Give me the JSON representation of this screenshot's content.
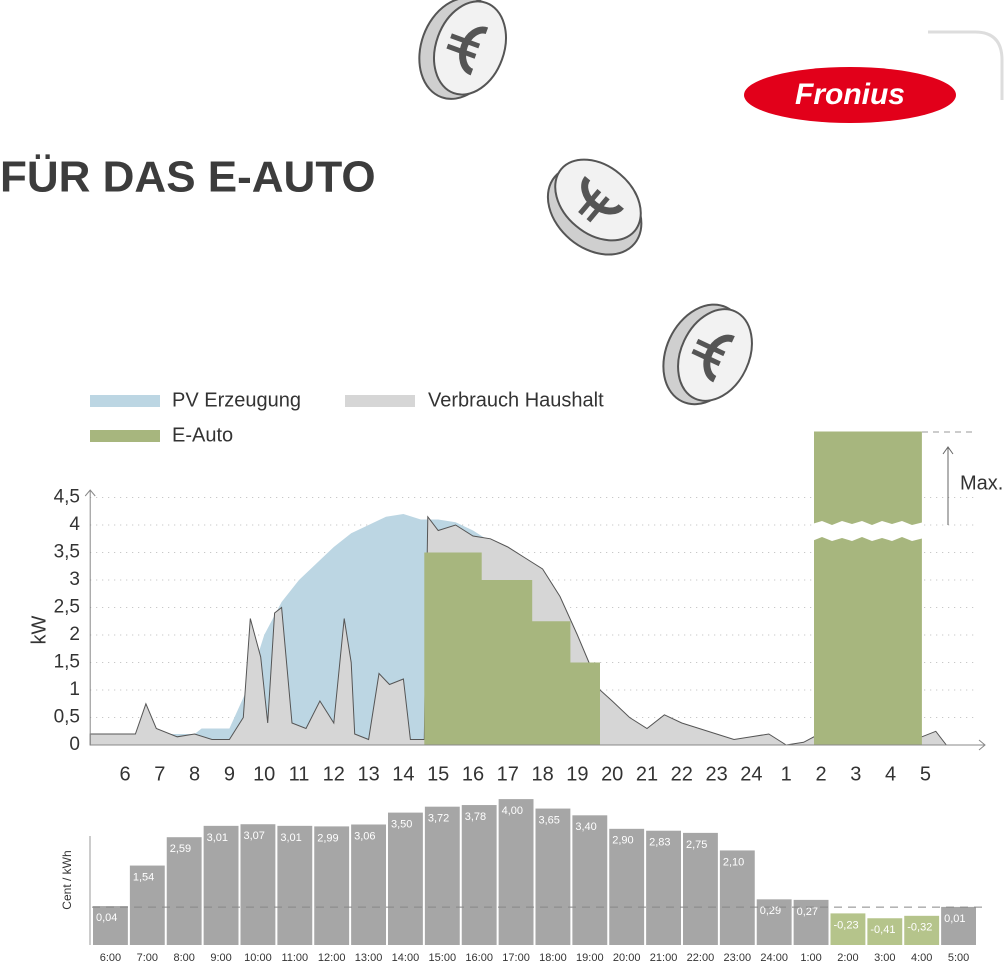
{
  "header": {
    "title": "FÜR DAS E-AUTO",
    "logo": "Fronius"
  },
  "chart_data": [
    {
      "type": "area",
      "ylabel": "kW",
      "annotation": "Max.",
      "xlim": [
        5,
        30.5
      ],
      "ylim": [
        0,
        4.5
      ],
      "xticks": [
        6,
        7,
        8,
        9,
        10,
        11,
        12,
        13,
        14,
        15,
        16,
        17,
        18,
        19,
        20,
        21,
        22,
        23,
        24,
        {
          "value": 25,
          "label": "1"
        },
        {
          "value": 26,
          "label": "2"
        },
        {
          "value": 27,
          "label": "3"
        },
        {
          "value": 28,
          "label": "4"
        },
        {
          "value": 29,
          "label": "5"
        }
      ],
      "yticks": [
        0,
        {
          "value": 0.5,
          "label": "0,5"
        },
        1,
        {
          "value": 1.5,
          "label": "1,5"
        },
        2,
        {
          "value": 2.5,
          "label": "2,5"
        },
        3,
        {
          "value": 3.5,
          "label": "3,5"
        },
        4,
        {
          "value": 4.5,
          "label": "4,5"
        }
      ],
      "grid": true,
      "series": [
        {
          "name": "PV Erzeugung",
          "color": "#bcd6e3",
          "x": [
            5,
            8,
            8.2,
            9,
            9.5,
            10,
            10.5,
            11,
            11.5,
            12,
            12.5,
            13,
            13.5,
            14,
            14.5,
            15,
            15.5,
            16,
            16.5,
            17,
            17.5,
            18,
            18.5,
            19,
            19.3,
            19.6,
            19.8,
            20
          ],
          "values": [
            0.2,
            0.2,
            0.3,
            0.3,
            1.0,
            2.0,
            2.6,
            3.0,
            3.3,
            3.6,
            3.85,
            4.0,
            4.15,
            4.2,
            4.1,
            4.1,
            4.05,
            3.9,
            3.7,
            3.5,
            3.2,
            2.8,
            2.3,
            1.7,
            1.2,
            0.6,
            0.2,
            0
          ]
        },
        {
          "name": "Verbrauch Haushalt",
          "color": "#d6d6d6",
          "line_color": "#555555",
          "x": [
            5,
            6.3,
            6.6,
            6.9,
            7.5,
            8,
            8.5,
            9,
            9.4,
            9.6,
            9.9,
            10.1,
            10.3,
            10.5,
            10.8,
            11.2,
            11.6,
            12,
            12.3,
            12.5,
            12.6,
            13,
            13.3,
            13.6,
            14,
            14.2,
            14.6,
            14.7,
            15,
            15.5,
            16,
            16.5,
            17,
            17.5,
            18,
            18.5,
            19,
            19.4,
            19.65,
            20,
            20.5,
            21,
            21.5,
            22,
            22.5,
            23,
            23.5,
            24,
            24.5,
            25,
            25.5,
            25.8,
            28.9,
            29.3,
            29.6
          ],
          "values": [
            0.2,
            0.2,
            0.75,
            0.3,
            0.15,
            0.2,
            0.1,
            0.1,
            0.5,
            2.3,
            1.6,
            0.4,
            2.4,
            2.5,
            0.4,
            0.3,
            0.8,
            0.4,
            2.3,
            1.5,
            0.2,
            0.1,
            1.3,
            1.1,
            1.2,
            0.1,
            0.1,
            4.15,
            3.9,
            4.0,
            3.8,
            3.75,
            3.6,
            3.4,
            3.2,
            2.7,
            2.0,
            1.4,
            1.0,
            0.8,
            0.5,
            0.3,
            0.55,
            0.4,
            0.3,
            0.2,
            0.1,
            0.15,
            0.2,
            0.0,
            0.05,
            0.15,
            0.15,
            0.25,
            0
          ]
        },
        {
          "name": "E-Auto",
          "color": "#a7b67e",
          "x": [
            14.6,
            14.6,
            16.25,
            16.25,
            17.7,
            17.7,
            18.8,
            18.8,
            19.65,
            19.65,
            null,
            25.8,
            25.8,
            28.9,
            28.9
          ],
          "values": [
            0,
            3.5,
            3.5,
            3.0,
            3.0,
            2.25,
            2.25,
            1.5,
            1.5,
            0,
            null,
            0,
            5.7,
            5.7,
            0
          ]
        }
      ]
    },
    {
      "type": "bar",
      "ylabel": "Cent / kWh",
      "ylim": [
        -1.4,
        4.3
      ],
      "color": "#a6a6a6",
      "negative_color": "#b5c48b",
      "categories": [
        "6:00",
        "7:00",
        "8:00",
        "9:00",
        "10:00",
        "11:00",
        "12:00",
        "13:00",
        "14:00",
        "15:00",
        "16:00",
        "17:00",
        "18:00",
        "19:00",
        "20:00",
        "21:00",
        "22:00",
        "23:00",
        "24:00",
        "1:00",
        "2:00",
        "3:00",
        "4:00",
        "5:00"
      ],
      "values": [
        0.04,
        1.54,
        2.59,
        3.01,
        3.07,
        3.01,
        2.99,
        3.06,
        3.5,
        3.72,
        3.78,
        4.0,
        3.65,
        3.4,
        2.9,
        2.83,
        2.75,
        2.1,
        0.29,
        0.27,
        -0.23,
        -0.41,
        -0.32,
        0.01
      ],
      "value_labels": [
        "0,04",
        "1,54",
        "2,59",
        "3,01",
        "3,07",
        "3,01",
        "2,99",
        "3,06",
        "3,50",
        "3,72",
        "3,78",
        "4,00",
        "3,65",
        "3,40",
        "2,90",
        "2,83",
        "2,75",
        "2,10",
        "0,29",
        "0,27",
        "-0,23",
        "-0,41",
        "-0,32",
        "0,01"
      ]
    }
  ]
}
